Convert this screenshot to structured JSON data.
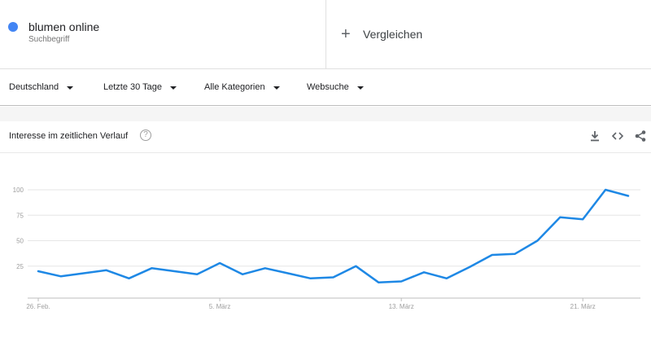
{
  "search_term": {
    "name": "blumen online",
    "type_label": "Suchbegriff",
    "color": "#4285f4"
  },
  "compare": {
    "icon": "plus-icon",
    "label": "Vergleichen"
  },
  "filters": {
    "region": "Deutschland",
    "time_range": "Letzte 30 Tage",
    "category": "Alle Kategorien",
    "search_type": "Websuche"
  },
  "card": {
    "title": "Interesse im zeitlichen Verlauf",
    "help_glyph": "?",
    "tools": [
      "download-icon",
      "embed-icon",
      "share-icon"
    ]
  },
  "chart_data": {
    "type": "line",
    "x": [
      "26. Feb.",
      "27. Feb.",
      "28. Feb.",
      "29. Feb.",
      "1. März",
      "2. März",
      "3. März",
      "4. März",
      "5. März",
      "6. März",
      "7. März",
      "8. März",
      "9. März",
      "10. März",
      "11. März",
      "12. März",
      "13. März",
      "14. März",
      "15. März",
      "16. März",
      "17. März",
      "18. März",
      "19. März",
      "20. März",
      "21. März",
      "22. März",
      "23. März"
    ],
    "x_tick_labels": [
      "26. Feb.",
      "5. März",
      "13. März",
      "21. März"
    ],
    "series": [
      {
        "values": [
          20,
          15,
          18,
          21,
          13,
          23,
          20,
          17,
          28,
          17,
          23,
          18,
          13,
          14,
          25,
          9,
          10,
          19,
          13,
          24,
          36,
          37,
          50,
          73,
          71,
          100,
          94
        ],
        "color": "#1e88e5"
      }
    ],
    "yticks": [
      25,
      50,
      75,
      100
    ],
    "ylim": [
      0,
      100
    ],
    "grid": true
  }
}
